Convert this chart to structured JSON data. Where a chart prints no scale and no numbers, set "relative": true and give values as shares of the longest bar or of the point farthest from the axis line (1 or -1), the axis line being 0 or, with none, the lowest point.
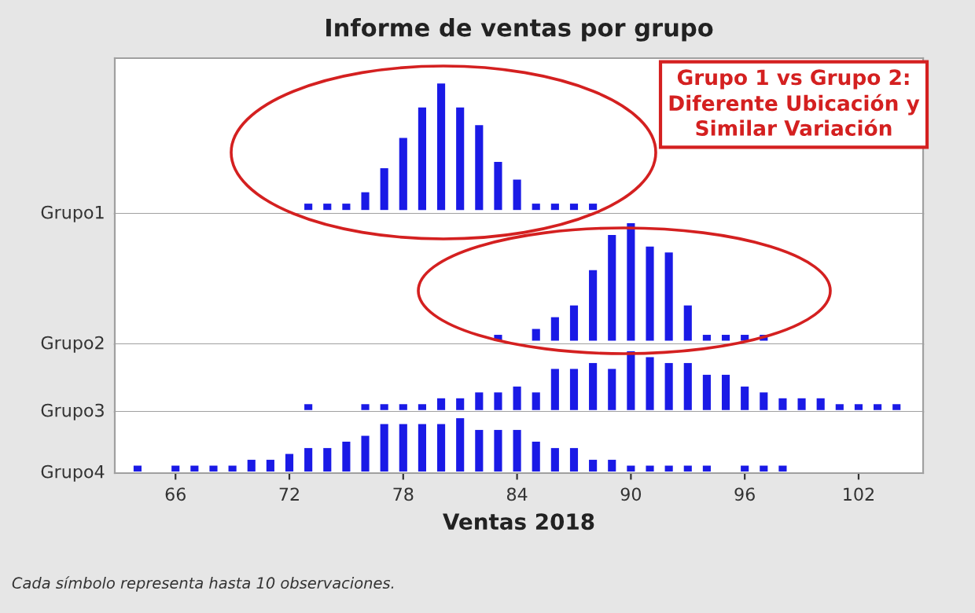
{
  "chart_data": [
    {
      "type": "bar",
      "title": "Informe de ventas por grupo",
      "ylabel": "Grupo1",
      "relative": true,
      "xlim": [
        62.8,
        105.4
      ],
      "tick_labels": false,
      "x": [
        73,
        74,
        75,
        76,
        77,
        78,
        79,
        80,
        81,
        82,
        83,
        84,
        85,
        86,
        87,
        88
      ],
      "values": [
        0.05,
        0.05,
        0.05,
        0.14,
        0.33,
        0.57,
        0.81,
        1,
        0.81,
        0.67,
        0.38,
        0.24,
        0.05,
        0.05,
        0.05,
        0.05
      ],
      "color": "#1a1ae6",
      "annotations": [
        "Grupo 1 vs Grupo 2:\nDiferente Ubicación y\nSimilar Variación"
      ]
    },
    {
      "type": "bar",
      "ylabel": "Grupo2",
      "relative": true,
      "xlim": [
        62.8,
        105.4
      ],
      "tick_labels": false,
      "x": [
        83,
        85,
        86,
        87,
        88,
        89,
        90,
        91,
        92,
        93,
        94,
        95,
        96,
        97
      ],
      "values": [
        0.05,
        0.1,
        0.2,
        0.3,
        0.6,
        0.9,
        1,
        0.8,
        0.75,
        0.3,
        0.05,
        0.05,
        0.05,
        0.05
      ],
      "color": "#1a1ae6"
    },
    {
      "type": "bar",
      "ylabel": "Grupo3",
      "relative": true,
      "xlim": [
        62.8,
        105.4
      ],
      "tick_labels": false,
      "x": [
        73,
        76,
        77,
        78,
        79,
        80,
        81,
        82,
        83,
        84,
        85,
        86,
        87,
        88,
        89,
        90,
        91,
        92,
        93,
        94,
        95,
        96,
        97,
        98,
        99,
        100,
        101,
        102,
        103,
        104
      ],
      "values": [
        0.1,
        0.1,
        0.1,
        0.1,
        0.1,
        0.2,
        0.2,
        0.3,
        0.3,
        0.4,
        0.3,
        0.7,
        0.7,
        0.8,
        0.7,
        1,
        0.9,
        0.8,
        0.8,
        0.6,
        0.6,
        0.4,
        0.3,
        0.2,
        0.2,
        0.2,
        0.1,
        0.1,
        0.1,
        0.1
      ],
      "color": "#1a1ae6"
    },
    {
      "type": "bar",
      "ylabel": "Grupo4",
      "xlabel": "Ventas 2018",
      "relative": true,
      "xlim": [
        62.8,
        105.4
      ],
      "xticks": [
        66,
        72,
        78,
        84,
        90,
        96,
        102
      ],
      "tick_labels": "x",
      "x": [
        64,
        66,
        67,
        68,
        69,
        70,
        71,
        72,
        73,
        74,
        75,
        76,
        77,
        78,
        79,
        80,
        81,
        82,
        83,
        84,
        85,
        86,
        87,
        88,
        89,
        90,
        91,
        92,
        93,
        94,
        96,
        97,
        98
      ],
      "values": [
        0.11,
        0.11,
        0.11,
        0.11,
        0.11,
        0.22,
        0.22,
        0.33,
        0.44,
        0.44,
        0.56,
        0.67,
        0.89,
        0.89,
        0.89,
        0.89,
        1,
        0.78,
        0.78,
        0.78,
        0.56,
        0.44,
        0.44,
        0.22,
        0.22,
        0.11,
        0.11,
        0.11,
        0.11,
        0.11,
        0.11,
        0.11,
        0.11
      ],
      "color": "#1a1ae6",
      "annotations": [
        "Cada símbolo representa hasta 10 observaciones."
      ]
    }
  ]
}
